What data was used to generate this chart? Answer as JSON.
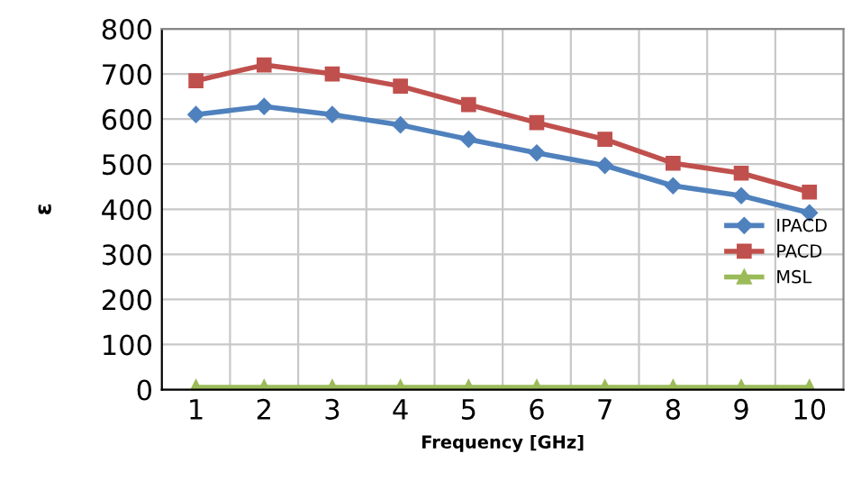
{
  "chart_data": {
    "type": "line",
    "xlabel": "Frequency [GHz]",
    "ylabel": "ε",
    "categories": [
      "1",
      "2",
      "3",
      "4",
      "5",
      "6",
      "7",
      "8",
      "9",
      "10"
    ],
    "series": [
      {
        "name": "IPACD",
        "color": "#4f81bd",
        "marker": "diamond",
        "values": [
          610,
          628,
          610,
          587,
          555,
          525,
          497,
          452,
          430,
          392
        ]
      },
      {
        "name": "PACD",
        "color": "#c0504d",
        "marker": "square",
        "values": [
          685,
          720,
          700,
          673,
          632,
          592,
          555,
          502,
          480,
          438
        ]
      },
      {
        "name": "MSL",
        "color": "#9bbb59",
        "marker": "triangle",
        "values": [
          5,
          5,
          5,
          5,
          5,
          5,
          5,
          5,
          5,
          5
        ]
      }
    ],
    "ylim": [
      0,
      800
    ],
    "yticks": [
      0,
      100,
      200,
      300,
      400,
      500,
      600,
      700,
      800
    ],
    "grid": true,
    "legend": "right"
  }
}
